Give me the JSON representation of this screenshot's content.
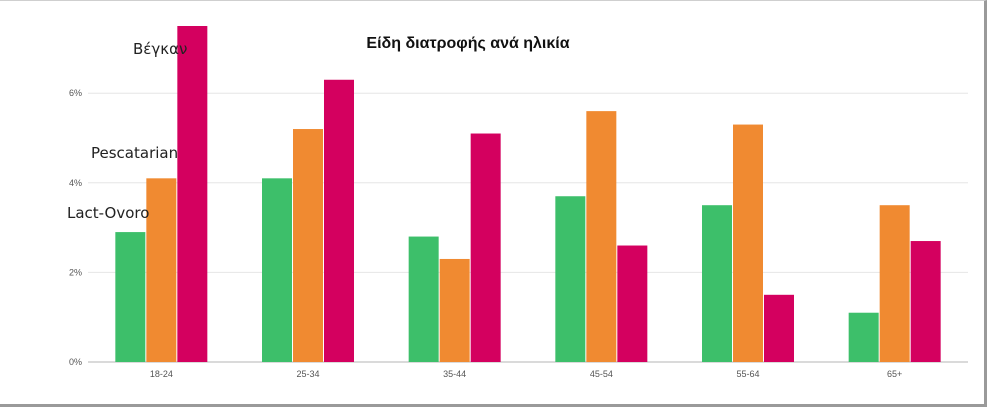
{
  "chart_data": {
    "type": "bar",
    "title": "Είδη διατροφής ανά ηλικία",
    "xlabel": "",
    "ylabel": "",
    "categories": [
      "18-24",
      "25-34",
      "35-44",
      "45-54",
      "55-64",
      "65+"
    ],
    "series": [
      {
        "name": "Lact-Ovoro",
        "color": "#3dbf6a",
        "values": [
          2.9,
          4.1,
          2.8,
          3.7,
          3.5,
          1.1
        ]
      },
      {
        "name": "Pescatarian",
        "color": "#f08a31",
        "values": [
          4.1,
          5.2,
          2.3,
          5.6,
          5.3,
          3.5
        ]
      },
      {
        "name": "Βέγκαν",
        "color": "#d4005f",
        "values": [
          7.5,
          6.3,
          5.1,
          2.6,
          1.5,
          2.7
        ]
      }
    ],
    "ylim": [
      0,
      7.5
    ],
    "yticks": [
      0,
      2,
      4,
      6
    ],
    "ytick_labels": [
      "0%",
      "2%",
      "4%",
      "6%"
    ],
    "grid": true,
    "legend": "labels at left, no legend box"
  }
}
